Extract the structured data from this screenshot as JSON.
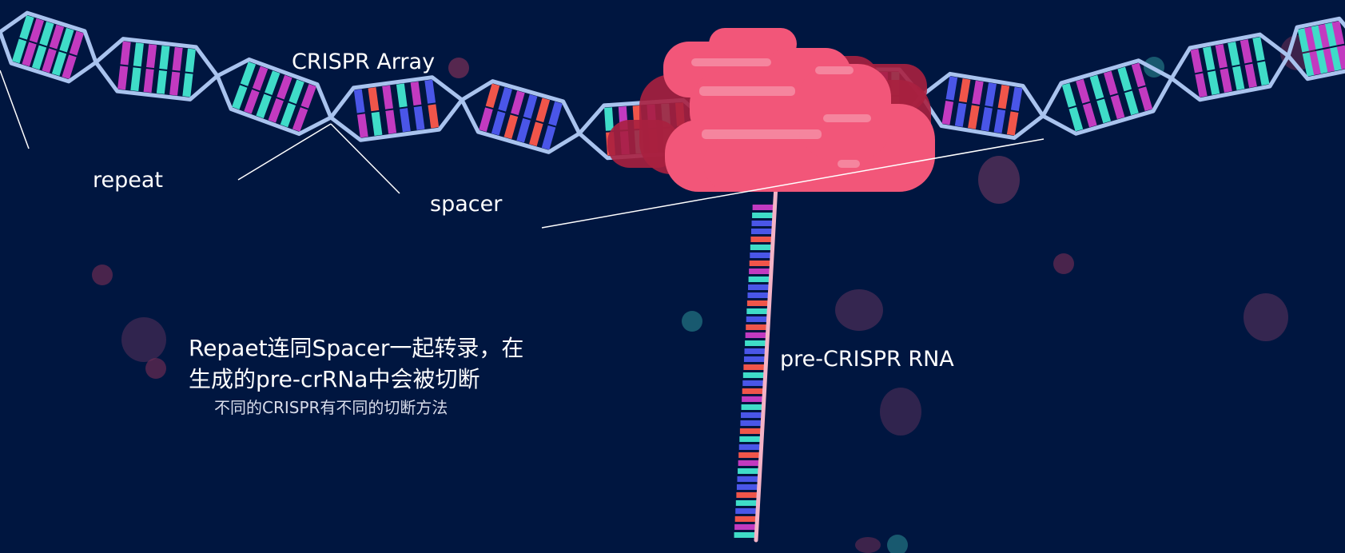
{
  "labels": {
    "array": "CRISPR Array",
    "repeat": "repeat",
    "spacer": "spacer",
    "rna": "pre-CRISPR RNA"
  },
  "caption": {
    "line1": "Repaet连同Spacer一起转录，在",
    "line2": "生成的pre-crRNa中会被切断",
    "note": "不同的CRISPR有不同的切断方法"
  },
  "colors": {
    "background": "#001640",
    "backbone": "#a9c3ee",
    "base_cyan": "#3fdcc8",
    "base_magenta": "#c23ac0",
    "base_blue": "#4a56e8",
    "base_red": "#f0554a",
    "polymerase": "#f25679",
    "polymerase_dark": "#a8203f",
    "rna_strand": "#f4b3c6"
  },
  "icons": [
    "dna-double-helix-icon",
    "rna-polymerase-icon",
    "rna-strand-icon"
  ]
}
